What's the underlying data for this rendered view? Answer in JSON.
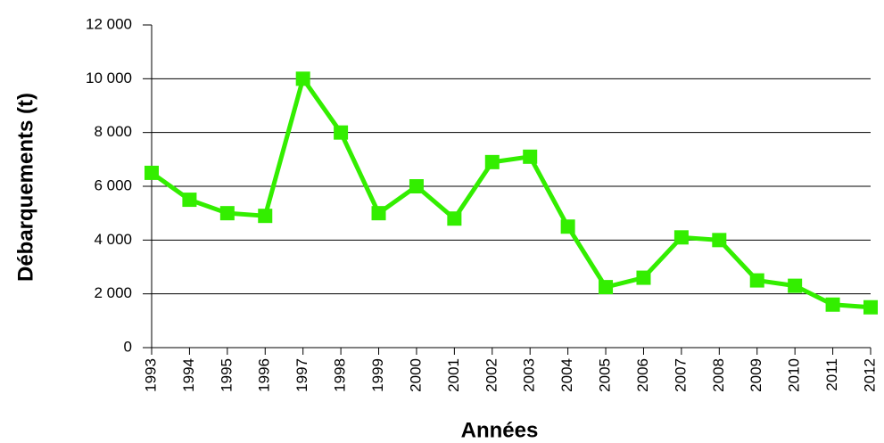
{
  "chart_data": {
    "type": "line",
    "xlabel": "Années",
    "ylabel": "Débarquements (t)",
    "x": [
      1993,
      1994,
      1995,
      1996,
      1997,
      1998,
      1999,
      2000,
      2001,
      2002,
      2003,
      2004,
      2005,
      2006,
      2007,
      2008,
      2009,
      2010,
      2011,
      2012
    ],
    "series": [
      {
        "name": "Débarquements",
        "color": "#33ee00",
        "values": [
          6500,
          5500,
          5000,
          4900,
          10000,
          8000,
          5000,
          6000,
          4800,
          6900,
          7100,
          4500,
          2250,
          2600,
          4100,
          4000,
          2500,
          2300,
          1600,
          1500
        ]
      }
    ],
    "xlim": [
      1993,
      2012
    ],
    "xticks": [
      1993,
      1994,
      1995,
      1996,
      1997,
      1998,
      1999,
      2000,
      2001,
      2002,
      2003,
      2004,
      2005,
      2006,
      2007,
      2008,
      2009,
      2010,
      2011,
      2012
    ],
    "ylim": [
      0,
      12000
    ],
    "yticks": [
      0,
      {
        "value": 2000,
        "label": "2 000"
      },
      {
        "value": 4000,
        "label": "4 000"
      },
      {
        "value": 6000,
        "label": "6 000"
      },
      {
        "value": 8000,
        "label": "8 000"
      },
      {
        "value": 10000,
        "label": "10 000"
      },
      {
        "value": 12000,
        "label": "12 000"
      }
    ],
    "grid": true
  }
}
